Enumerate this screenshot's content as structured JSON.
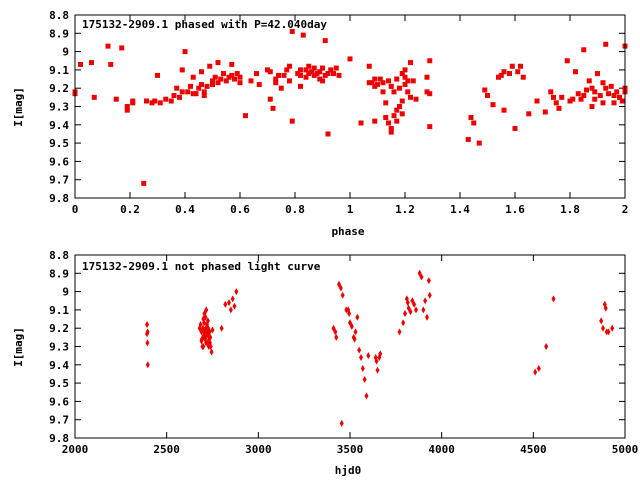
{
  "chart_data": [
    {
      "type": "scatter",
      "title": "175132-2909.1 phased with P=42.040day",
      "xlabel": "phase",
      "ylabel": "I[mag]",
      "xlim": [
        0,
        2
      ],
      "ylim": [
        8.8,
        9.8
      ],
      "y_inverted": true,
      "x_ticks": [
        "0",
        "0.2",
        "0.4",
        "0.6",
        "0.8",
        "1",
        "1.2",
        "1.4",
        "1.6",
        "1.8",
        "2"
      ],
      "y_ticks": [
        "8.8",
        "8.9",
        "9",
        "9.1",
        "9.2",
        "9.3",
        "9.4",
        "9.5",
        "9.6",
        "9.7",
        "9.8"
      ],
      "marker_color": "#ee0000",
      "marker": "filled-square",
      "grid": false,
      "points": [
        [
          0.0,
          9.23
        ],
        [
          0.0,
          9.22
        ],
        [
          0.02,
          9.07
        ],
        [
          0.06,
          9.06
        ],
        [
          0.07,
          9.25
        ],
        [
          0.12,
          8.97
        ],
        [
          0.13,
          9.07
        ],
        [
          0.15,
          9.26
        ],
        [
          0.17,
          8.98
        ],
        [
          0.19,
          9.3
        ],
        [
          0.19,
          9.32
        ],
        [
          0.21,
          9.28
        ],
        [
          0.21,
          9.27
        ],
        [
          0.25,
          9.72
        ],
        [
          0.26,
          9.27
        ],
        [
          0.28,
          9.28
        ],
        [
          0.29,
          9.27
        ],
        [
          0.3,
          9.13
        ],
        [
          0.31,
          9.28
        ],
        [
          0.33,
          9.26
        ],
        [
          0.35,
          9.27
        ],
        [
          0.36,
          9.24
        ],
        [
          0.37,
          9.2
        ],
        [
          0.38,
          9.25
        ],
        [
          0.39,
          9.22
        ],
        [
          0.39,
          9.1
        ],
        [
          0.4,
          9.0
        ],
        [
          0.41,
          9.22
        ],
        [
          0.42,
          9.19
        ],
        [
          0.43,
          9.23
        ],
        [
          0.43,
          9.14
        ],
        [
          0.44,
          9.23
        ],
        [
          0.45,
          9.2
        ],
        [
          0.46,
          9.11
        ],
        [
          0.46,
          9.18
        ],
        [
          0.47,
          9.22
        ],
        [
          0.47,
          9.24
        ],
        [
          0.48,
          9.19
        ],
        [
          0.49,
          9.08
        ],
        [
          0.5,
          9.16
        ],
        [
          0.5,
          9.18
        ],
        [
          0.51,
          9.14
        ],
        [
          0.52,
          9.17
        ],
        [
          0.52,
          9.06
        ],
        [
          0.53,
          9.15
        ],
        [
          0.54,
          9.12
        ],
        [
          0.55,
          9.16
        ],
        [
          0.56,
          9.14
        ],
        [
          0.57,
          9.13
        ],
        [
          0.57,
          9.07
        ],
        [
          0.58,
          9.15
        ],
        [
          0.59,
          9.12
        ],
        [
          0.6,
          9.14
        ],
        [
          0.6,
          9.17
        ],
        [
          0.62,
          9.35
        ],
        [
          0.64,
          9.16
        ],
        [
          0.66,
          9.12
        ],
        [
          0.67,
          9.18
        ],
        [
          0.7,
          9.1
        ],
        [
          0.71,
          9.11
        ],
        [
          0.71,
          9.26
        ],
        [
          0.72,
          9.31
        ],
        [
          0.73,
          9.17
        ],
        [
          0.73,
          9.15
        ],
        [
          0.74,
          9.13
        ],
        [
          0.75,
          9.2
        ],
        [
          0.76,
          9.13
        ],
        [
          0.77,
          9.1
        ],
        [
          0.78,
          9.08
        ],
        [
          0.78,
          9.16
        ],
        [
          0.79,
          9.38
        ],
        [
          0.79,
          8.89
        ],
        [
          0.81,
          9.12
        ],
        [
          0.82,
          9.1
        ],
        [
          0.82,
          9.13
        ],
        [
          0.82,
          9.19
        ],
        [
          0.83,
          8.91
        ],
        [
          0.84,
          9.1
        ],
        [
          0.84,
          9.14
        ],
        [
          0.85,
          9.12
        ],
        [
          0.85,
          9.08
        ],
        [
          0.86,
          9.11
        ],
        [
          0.87,
          9.13
        ],
        [
          0.87,
          9.09
        ],
        [
          0.88,
          9.12
        ],
        [
          0.89,
          9.15
        ],
        [
          0.89,
          9.11
        ],
        [
          0.9,
          9.09
        ],
        [
          0.9,
          9.16
        ],
        [
          0.91,
          9.13
        ],
        [
          0.91,
          8.94
        ],
        [
          0.92,
          9.12
        ],
        [
          0.92,
          9.45
        ],
        [
          0.93,
          9.1
        ],
        [
          0.94,
          9.12
        ],
        [
          0.95,
          9.09
        ],
        [
          0.96,
          9.13
        ],
        [
          1.0,
          9.04
        ],
        [
          1.04,
          9.39
        ],
        [
          1.07,
          9.17
        ],
        [
          1.07,
          9.08
        ],
        [
          1.08,
          9.17
        ],
        [
          1.09,
          9.15
        ],
        [
          1.09,
          9.19
        ],
        [
          1.09,
          9.38
        ],
        [
          1.1,
          9.18
        ],
        [
          1.11,
          9.15
        ],
        [
          1.12,
          9.17
        ],
        [
          1.12,
          9.22
        ],
        [
          1.13,
          9.28
        ],
        [
          1.13,
          9.36
        ],
        [
          1.14,
          9.16
        ],
        [
          1.14,
          9.39
        ],
        [
          1.15,
          9.42
        ],
        [
          1.15,
          9.19
        ],
        [
          1.15,
          9.44
        ],
        [
          1.16,
          9.35
        ],
        [
          1.16,
          9.22
        ],
        [
          1.17,
          9.15
        ],
        [
          1.17,
          9.32
        ],
        [
          1.17,
          9.38
        ],
        [
          1.18,
          9.3
        ],
        [
          1.18,
          9.2
        ],
        [
          1.19,
          9.12
        ],
        [
          1.19,
          9.27
        ],
        [
          1.19,
          9.34
        ],
        [
          1.2,
          9.14
        ],
        [
          1.2,
          9.18
        ],
        [
          1.2,
          9.1
        ],
        [
          1.21,
          9.22
        ],
        [
          1.21,
          9.16
        ],
        [
          1.22,
          9.06
        ],
        [
          1.22,
          9.25
        ],
        [
          1.23,
          9.16
        ],
        [
          1.24,
          9.26
        ],
        [
          1.28,
          9.22
        ],
        [
          1.28,
          9.14
        ],
        [
          1.29,
          9.05
        ],
        [
          1.29,
          9.41
        ],
        [
          1.29,
          9.23
        ],
        [
          1.43,
          9.48
        ],
        [
          1.44,
          9.36
        ],
        [
          1.45,
          9.39
        ],
        [
          1.47,
          9.5
        ],
        [
          1.49,
          9.21
        ],
        [
          1.5,
          9.24
        ],
        [
          1.52,
          9.29
        ],
        [
          1.54,
          9.14
        ],
        [
          1.55,
          9.13
        ],
        [
          1.56,
          9.32
        ],
        [
          1.56,
          9.11
        ],
        [
          1.58,
          9.12
        ],
        [
          1.59,
          9.08
        ],
        [
          1.6,
          9.42
        ],
        [
          1.61,
          9.11
        ],
        [
          1.62,
          9.08
        ],
        [
          1.63,
          9.14
        ],
        [
          1.65,
          9.34
        ],
        [
          1.68,
          9.27
        ],
        [
          1.71,
          9.33
        ],
        [
          1.73,
          9.22
        ],
        [
          1.74,
          9.25
        ],
        [
          1.75,
          9.28
        ],
        [
          1.76,
          9.31
        ],
        [
          1.77,
          9.25
        ],
        [
          1.79,
          9.05
        ],
        [
          1.8,
          9.27
        ],
        [
          1.81,
          9.26
        ],
        [
          1.82,
          9.11
        ],
        [
          1.83,
          9.23
        ],
        [
          1.84,
          9.26
        ],
        [
          1.85,
          9.24
        ],
        [
          1.85,
          8.99
        ],
        [
          1.86,
          9.21
        ],
        [
          1.87,
          9.16
        ],
        [
          1.88,
          9.2
        ],
        [
          1.88,
          9.3
        ],
        [
          1.89,
          9.22
        ],
        [
          1.89,
          9.26
        ],
        [
          1.9,
          9.12
        ],
        [
          1.91,
          9.24
        ],
        [
          1.92,
          9.17
        ],
        [
          1.92,
          9.28
        ],
        [
          1.93,
          9.2
        ],
        [
          1.93,
          8.96
        ],
        [
          1.94,
          9.23
        ],
        [
          1.95,
          9.19
        ],
        [
          1.96,
          9.24
        ],
        [
          1.96,
          9.28
        ],
        [
          1.97,
          9.22
        ],
        [
          1.98,
          9.25
        ],
        [
          1.99,
          9.27
        ],
        [
          2.0,
          9.2
        ],
        [
          2.0,
          8.97
        ],
        [
          2.0,
          9.22
        ]
      ]
    },
    {
      "type": "scatter",
      "title": "175132-2909.1 not phased light curve",
      "xlabel": "hjd0",
      "ylabel": "I[mag]",
      "xlim": [
        2000,
        5000
      ],
      "ylim": [
        8.8,
        9.8
      ],
      "y_inverted": true,
      "x_ticks": [
        "2000",
        "2500",
        "3000",
        "3500",
        "4000",
        "4500",
        "5000"
      ],
      "y_ticks": [
        "8.8",
        "8.9",
        "9",
        "9.1",
        "9.2",
        "9.3",
        "9.4",
        "9.5",
        "9.6",
        "9.7",
        "9.8"
      ],
      "marker_color": "#ee0000",
      "marker": "filled-diamond",
      "grid": false,
      "points": [
        [
          2393,
          9.18
        ],
        [
          2393,
          9.23
        ],
        [
          2395,
          9.28
        ],
        [
          2397,
          9.4
        ],
        [
          2396,
          9.22
        ],
        [
          2680,
          9.2
        ],
        [
          2685,
          9.18
        ],
        [
          2690,
          9.22
        ],
        [
          2692,
          9.26
        ],
        [
          2695,
          9.3
        ],
        [
          2698,
          9.2
        ],
        [
          2700,
          9.15
        ],
        [
          2702,
          9.24
        ],
        [
          2704,
          9.17
        ],
        [
          2706,
          9.12
        ],
        [
          2708,
          9.22
        ],
        [
          2710,
          9.26
        ],
        [
          2712,
          9.14
        ],
        [
          2714,
          9.2
        ],
        [
          2716,
          9.1
        ],
        [
          2718,
          9.24
        ],
        [
          2720,
          9.18
        ],
        [
          2722,
          9.28
        ],
        [
          2724,
          9.22
        ],
        [
          2726,
          9.2
        ],
        [
          2728,
          9.24
        ],
        [
          2730,
          9.3
        ],
        [
          2732,
          9.26
        ],
        [
          2734,
          9.22
        ],
        [
          2736,
          9.28
        ],
        [
          2738,
          9.25
        ],
        [
          2740,
          9.3
        ],
        [
          2745,
          9.33
        ],
        [
          2705,
          9.25
        ],
        [
          2715,
          9.28
        ],
        [
          2725,
          9.16
        ],
        [
          2700,
          9.3
        ],
        [
          2690,
          9.27
        ],
        [
          2750,
          9.21
        ],
        [
          2800,
          9.2
        ],
        [
          2820,
          9.07
        ],
        [
          2840,
          9.06
        ],
        [
          2850,
          9.1
        ],
        [
          2860,
          9.04
        ],
        [
          2870,
          9.08
        ],
        [
          2880,
          9.0
        ],
        [
          3410,
          9.2
        ],
        [
          3420,
          9.22
        ],
        [
          3425,
          9.25
        ],
        [
          3440,
          8.96
        ],
        [
          3450,
          8.98
        ],
        [
          3455,
          9.72
        ],
        [
          3460,
          9.02
        ],
        [
          3480,
          9.1
        ],
        [
          3490,
          9.1
        ],
        [
          3495,
          9.12
        ],
        [
          3500,
          9.17
        ],
        [
          3510,
          9.19
        ],
        [
          3520,
          9.25
        ],
        [
          3525,
          9.26
        ],
        [
          3530,
          9.22
        ],
        [
          3540,
          9.14
        ],
        [
          3550,
          9.32
        ],
        [
          3560,
          9.36
        ],
        [
          3570,
          9.42
        ],
        [
          3580,
          9.48
        ],
        [
          3590,
          9.57
        ],
        [
          3600,
          9.35
        ],
        [
          3640,
          9.36
        ],
        [
          3645,
          9.38
        ],
        [
          3650,
          9.43
        ],
        [
          3660,
          9.36
        ],
        [
          3665,
          9.34
        ],
        [
          3770,
          9.22
        ],
        [
          3790,
          9.17
        ],
        [
          3800,
          9.12
        ],
        [
          3810,
          9.04
        ],
        [
          3815,
          9.06
        ],
        [
          3820,
          9.09
        ],
        [
          3830,
          9.11
        ],
        [
          3840,
          9.05
        ],
        [
          3850,
          9.07
        ],
        [
          3860,
          9.1
        ],
        [
          3880,
          8.9
        ],
        [
          3890,
          8.92
        ],
        [
          3900,
          9.1
        ],
        [
          3910,
          9.05
        ],
        [
          3920,
          9.14
        ],
        [
          3930,
          8.94
        ],
        [
          3935,
          9.02
        ],
        [
          4510,
          9.44
        ],
        [
          4530,
          9.42
        ],
        [
          4570,
          9.3
        ],
        [
          4610,
          9.04
        ],
        [
          4870,
          9.16
        ],
        [
          4880,
          9.2
        ],
        [
          4890,
          9.07
        ],
        [
          4895,
          9.09
        ],
        [
          4900,
          9.22
        ],
        [
          4910,
          9.22
        ],
        [
          4930,
          9.2
        ]
      ]
    }
  ]
}
